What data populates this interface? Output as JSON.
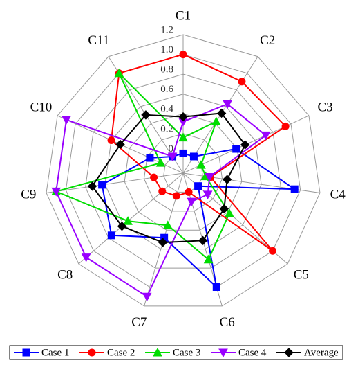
{
  "chart_data": {
    "type": "radar",
    "categories": [
      "C1",
      "C2",
      "C3",
      "C4",
      "C5",
      "C6",
      "C7",
      "C8",
      "C9",
      "C10",
      "C11"
    ],
    "rlim": [
      -0.2,
      1.2
    ],
    "rticks": [
      0,
      0.2,
      0.4,
      0.6,
      0.8,
      {
        "value": 1,
        "label": "1.0"
      },
      1.2
    ],
    "grid": true,
    "legend": "bottom",
    "series": [
      {
        "name": "Case 1",
        "color": "#0000ff",
        "marker": "square",
        "values": [
          0.0,
          0.0,
          0.39,
          0.94,
          0.0,
          1.0,
          0.48,
          0.76,
          0.63,
          0.17,
          0.0
        ]
      },
      {
        "name": "Case 2",
        "color": "#ff0000",
        "marker": "circle",
        "values": [
          1.0,
          0.9,
          0.94,
          0.08,
          1.0,
          0.0,
          0.04,
          0.08,
          0.1,
          0.6,
          1.0
        ]
      },
      {
        "name": "Case 3",
        "color": "#00dd00",
        "marker": "triangle",
        "values": [
          0.16,
          0.42,
          0.0,
          0.03,
          0.42,
          0.71,
          0.35,
          0.54,
          1.1,
          0.05,
          1.0
        ]
      },
      {
        "name": "Case 4",
        "color": "#9900ff",
        "marker": "triangle-down",
        "values": [
          0.32,
          0.63,
          0.72,
          0.07,
          0.13,
          0.1,
          1.1,
          1.1,
          1.1,
          1.1,
          0.0
        ]
      },
      {
        "name": "Average",
        "color": "#000000",
        "marker": "diamond",
        "values": [
          0.37,
          0.52,
          0.49,
          0.25,
          0.35,
          0.51,
          0.53,
          0.62,
          0.73,
          0.5,
          0.5
        ]
      }
    ]
  }
}
